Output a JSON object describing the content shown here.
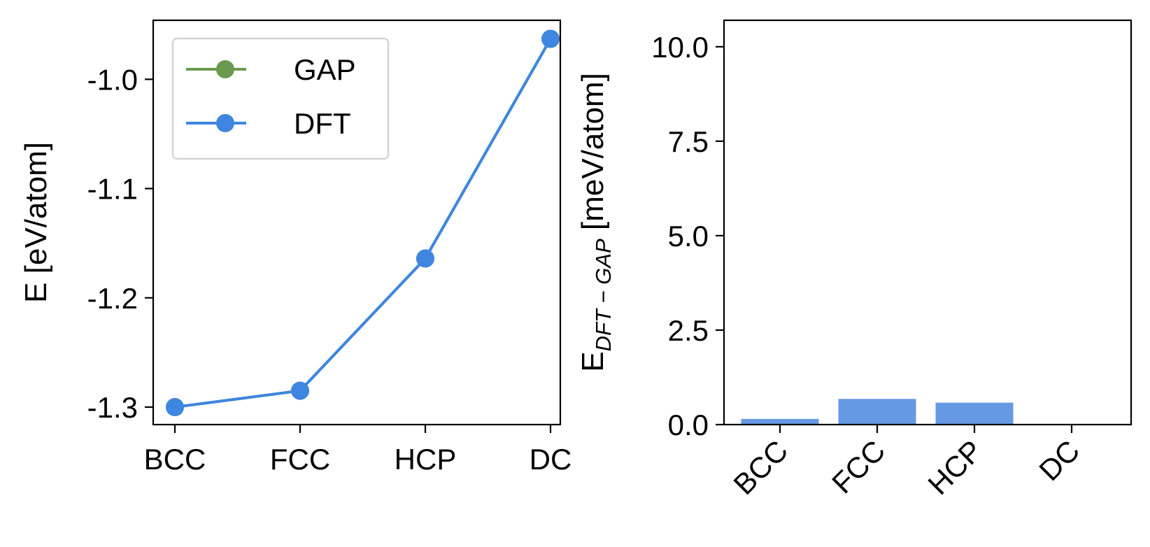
{
  "chart_data": [
    {
      "type": "line",
      "categories": [
        "BCC",
        "FCC",
        "HCP",
        "DC"
      ],
      "series": [
        {
          "name": "GAP",
          "color": "#6a9a50",
          "values": [
            -1.3,
            -1.285,
            -1.164,
            -0.963
          ]
        },
        {
          "name": "DFT",
          "color": "#3f86e0",
          "values": [
            -1.3,
            -1.285,
            -1.164,
            -0.963
          ]
        }
      ],
      "ylabel": "E [eV/atom]",
      "xlabel": "",
      "ylim": [
        -1.316,
        -0.946
      ],
      "yticks": [
        -1.3,
        -1.2,
        -1.1,
        -1.0
      ],
      "ytick_labels": [
        "-1.3",
        "-1.2",
        "-1.1",
        "-1.0"
      ],
      "legend": {
        "position": "top-left",
        "entries": [
          "GAP",
          "DFT"
        ]
      },
      "grid": false
    },
    {
      "type": "bar",
      "categories": [
        "BCC",
        "FCC",
        "HCP",
        "DC"
      ],
      "values": [
        0.15,
        0.68,
        0.58,
        0.0
      ],
      "color": "#6699e3",
      "ylabel_main": "E",
      "ylabel_sub": "DFT − GAP",
      "ylabel_rest": " [meV/atom]",
      "xlabel": "",
      "ylim": [
        0,
        10.7
      ],
      "yticks": [
        0.0,
        2.5,
        5.0,
        7.5,
        10.0
      ],
      "ytick_labels": [
        "0.0",
        "2.5",
        "5.0",
        "7.5",
        "10.0"
      ],
      "xtick_rotation": "45",
      "grid": false
    }
  ]
}
